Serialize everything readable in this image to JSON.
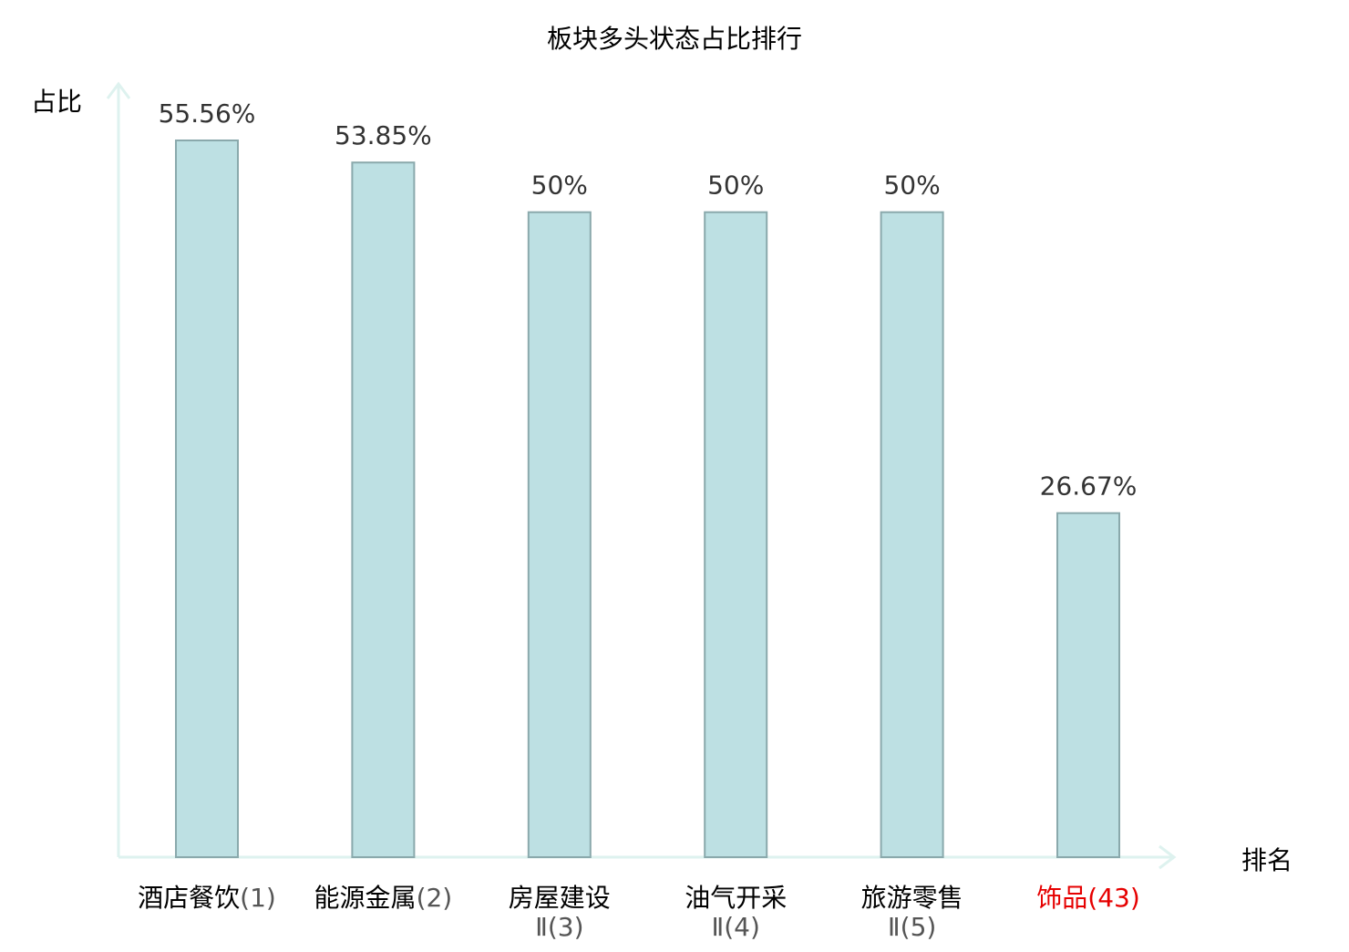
{
  "chart_data": {
    "type": "bar",
    "title": "板块多头状态占比排行",
    "ylabel": "占比",
    "xlabel": "排名",
    "categories": [
      {
        "name": "酒店餐饮",
        "line2": "",
        "rank": "(1)",
        "highlight": false
      },
      {
        "name": "能源金属",
        "line2": "",
        "rank": "(2)",
        "highlight": false
      },
      {
        "name": "房屋建设",
        "line2": "Ⅱ",
        "rank": "(3)",
        "highlight": false
      },
      {
        "name": "油气开采",
        "line2": "Ⅱ",
        "rank": "(4)",
        "highlight": false
      },
      {
        "name": "旅游零售",
        "line2": "Ⅱ",
        "rank": "(5)",
        "highlight": false
      },
      {
        "name": "饰品",
        "line2": "",
        "rank": "(43)",
        "highlight": true
      }
    ],
    "values": [
      55.56,
      53.85,
      50,
      50,
      50,
      26.67
    ],
    "value_labels": [
      "55.56%",
      "53.85%",
      "50%",
      "50%",
      "50%",
      "26.67%"
    ],
    "ylim": [
      0,
      55.56
    ],
    "grid": false,
    "colors": {
      "bar_fill": "#bde0e3",
      "bar_stroke": "#8aa9ac",
      "axis": "#def2ef",
      "text": "#333333",
      "label_text": "#000000",
      "highlight": "#e60000"
    }
  }
}
